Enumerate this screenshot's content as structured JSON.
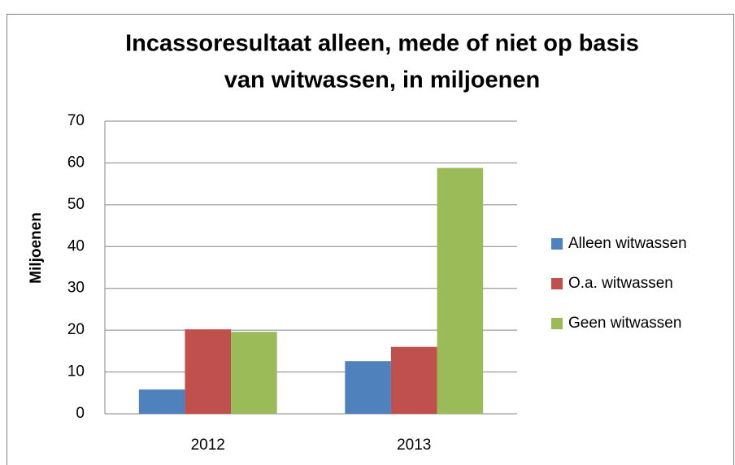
{
  "chart_data": {
    "type": "bar",
    "title": [
      "Incassoresultaat alleen, mede of niet op basis",
      "van witwassen, in miljoenen"
    ],
    "y_label": "Miljoenen",
    "categories": [
      "2012",
      "2013"
    ],
    "series": [
      {
        "name": "Alleen witwassen",
        "color": "#4f81bd",
        "values": [
          5.8,
          12.6
        ]
      },
      {
        "name": "O.a. witwassen",
        "color": "#c0504d",
        "values": [
          20.2,
          16.0
        ]
      },
      {
        "name": "Geen witwassen",
        "color": "#9bbb59",
        "values": [
          19.6,
          58.8
        ]
      }
    ],
    "ylim": [
      0,
      70
    ],
    "yticks": [
      0,
      10,
      20,
      30,
      40,
      50,
      60,
      70
    ],
    "grid": true,
    "legend": "right"
  }
}
